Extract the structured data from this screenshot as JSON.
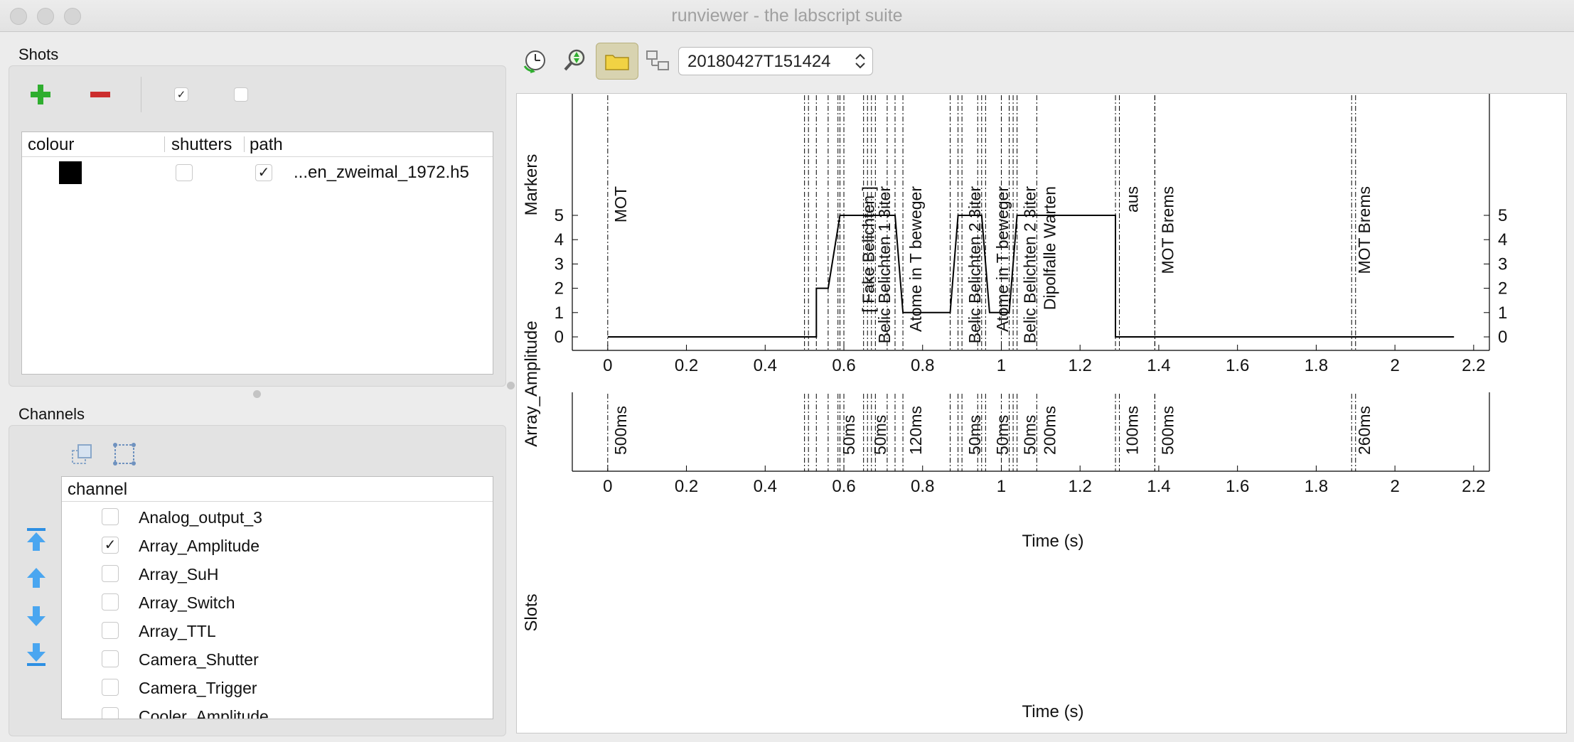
{
  "window": {
    "title": "runviewer - the labscript suite"
  },
  "shots": {
    "label": "Shots",
    "columns": [
      "colour",
      "shutters",
      "path"
    ],
    "rows": [
      {
        "colour": "#000000",
        "shutters_checked": false,
        "path_checked": true,
        "path": "...en_zweimal_1972.h5"
      }
    ]
  },
  "channels": {
    "label": "Channels",
    "column": "channel",
    "items": [
      {
        "name": "Analog_output_3",
        "checked": false
      },
      {
        "name": "Array_Amplitude",
        "checked": true
      },
      {
        "name": "Array_SuH",
        "checked": false
      },
      {
        "name": "Array_Switch",
        "checked": false
      },
      {
        "name": "Array_TTL",
        "checked": false
      },
      {
        "name": "Camera_Shutter",
        "checked": false
      },
      {
        "name": "Camera_Trigger",
        "checked": false
      },
      {
        "name": "Cooler_Amplitude",
        "checked": false
      }
    ]
  },
  "toolbar": {
    "shot_select_value": "20180427T151424"
  },
  "chart_data": {
    "type": "line",
    "panels": [
      {
        "ylabel": "Markers"
      },
      {
        "ylabel": "Array_Amplitude",
        "xlabel": "Time (s)",
        "ylim": [
          0,
          5
        ]
      },
      {
        "ylabel": "Slots",
        "xlabel": "Time (s)"
      }
    ],
    "xlim": [
      -0.09,
      2.24
    ],
    "xticks": [
      "0",
      "0.2",
      "0.4",
      "0.6",
      "0.8",
      "1",
      "1.2",
      "1.4",
      "1.6",
      "1.8",
      "2",
      "2.2"
    ],
    "yticks": [
      "0",
      "1",
      "2",
      "3",
      "4",
      "5"
    ],
    "series": [
      {
        "x": [
          0,
          0.53,
          0.53,
          0.56,
          0.59,
          0.73,
          0.75,
          0.87,
          0.89,
          0.95,
          0.97,
          1.02,
          1.04,
          1.29,
          1.29,
          2.15
        ],
        "y": [
          0,
          0,
          2,
          2,
          5,
          5,
          1,
          1,
          5,
          5,
          1,
          1,
          5,
          5,
          0,
          0
        ]
      }
    ],
    "event_lines": [
      0,
      0.5,
      0.51,
      0.53,
      0.56,
      0.585,
      0.59,
      0.6,
      0.65,
      0.66,
      0.67,
      0.68,
      0.71,
      0.73,
      0.75,
      0.87,
      0.89,
      0.9,
      0.94,
      0.95,
      0.96,
      1.0,
      1.02,
      1.03,
      1.04,
      1.09,
      1.29,
      1.3,
      1.39,
      1.39,
      1.89,
      1.9
    ],
    "markers": [
      {
        "t": 0,
        "text": "MOT"
      },
      {
        "t": 0.63,
        "text": "[ Fake Belichten ]"
      },
      {
        "t": 0.67,
        "text": "Belic Belichten 1 3iter"
      },
      {
        "t": 0.75,
        "text": "Atome in T beweger"
      },
      {
        "t": 0.9,
        "text": "Belic Belichten 2 3iter"
      },
      {
        "t": 0.97,
        "text": "Atome in T beweger"
      },
      {
        "t": 1.04,
        "text": "Belic Belichten 2 3iter"
      },
      {
        "t": 1.09,
        "text": "Dipolfalle Warten"
      },
      {
        "t": 1.3,
        "text": "aus"
      },
      {
        "t": 1.39,
        "text": "MOT Brems"
      },
      {
        "t": 1.89,
        "text": "MOT Brems"
      }
    ],
    "slots": [
      {
        "t": 0,
        "text": "500ms"
      },
      {
        "t": 0.58,
        "text": "50ms"
      },
      {
        "t": 0.66,
        "text": "50ms"
      },
      {
        "t": 0.75,
        "text": "120ms"
      },
      {
        "t": 0.9,
        "text": "50ms"
      },
      {
        "t": 0.97,
        "text": "50ms"
      },
      {
        "t": 1.04,
        "text": "50ms"
      },
      {
        "t": 1.09,
        "text": "200ms"
      },
      {
        "t": 1.3,
        "text": "100ms"
      },
      {
        "t": 1.39,
        "text": "500ms"
      },
      {
        "t": 1.89,
        "text": "260ms"
      }
    ]
  }
}
